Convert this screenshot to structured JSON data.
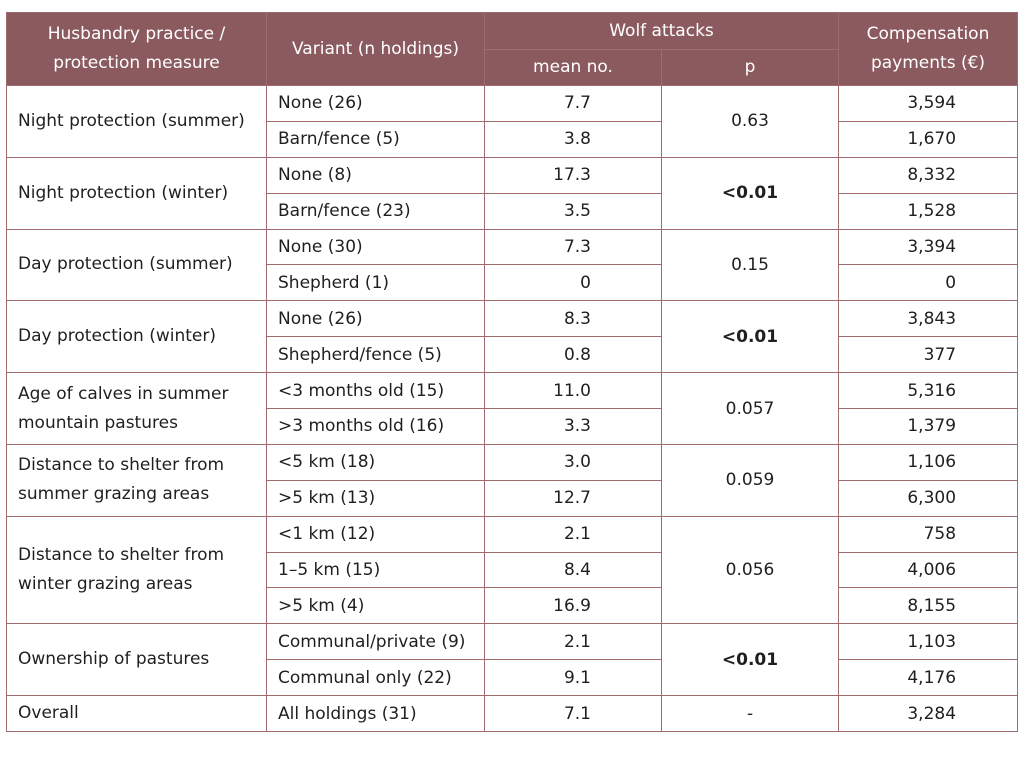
{
  "headers": {
    "practice": "Husbandry practice / protection measure",
    "variant": "Variant (n holdings)",
    "wolf_attacks": "Wolf attacks",
    "mean": "mean no.",
    "p": "p",
    "compensation": "Compensation payments (€)"
  },
  "groups": [
    {
      "practice": "Night protection (summer)",
      "p": "0.63",
      "significant": false,
      "rows": [
        {
          "variant": "None (26)",
          "mean": "7.7",
          "comp": "3,594"
        },
        {
          "variant": "Barn/fence (5)",
          "mean": "3.8",
          "comp": "1,670"
        }
      ]
    },
    {
      "practice": "Night protection (winter)",
      "p": "<0.01",
      "significant": true,
      "rows": [
        {
          "variant": "None (8)",
          "mean": "17.3",
          "comp": "8,332"
        },
        {
          "variant": "Barn/fence (23)",
          "mean": "3.5",
          "comp": "1,528"
        }
      ]
    },
    {
      "practice": "Day protection (summer)",
      "p": "0.15",
      "significant": false,
      "rows": [
        {
          "variant": "None (30)",
          "mean": "7.3",
          "comp": "3,394"
        },
        {
          "variant": "Shepherd (1)",
          "mean": "0",
          "comp": "0"
        }
      ]
    },
    {
      "practice": "Day protection (winter)",
      "p": "<0.01",
      "significant": true,
      "rows": [
        {
          "variant": "None (26)",
          "mean": "8.3",
          "comp": "3,843"
        },
        {
          "variant": "Shepherd/fence (5)",
          "mean": "0.8",
          "comp": "377"
        }
      ]
    },
    {
      "practice": "Age of calves in summer mountain pastures",
      "p": "0.057",
      "significant": false,
      "rows": [
        {
          "variant": "<3 months old (15)",
          "mean": "11.0",
          "comp": "5,316"
        },
        {
          "variant": ">3 months old (16)",
          "mean": "3.3",
          "comp": "1,379"
        }
      ]
    },
    {
      "practice": "Distance to shelter from summer grazing areas",
      "p": "0.059",
      "significant": false,
      "rows": [
        {
          "variant": "<5 km (18)",
          "mean": "3.0",
          "comp": "1,106"
        },
        {
          "variant": ">5 km (13)",
          "mean": "12.7",
          "comp": "6,300"
        }
      ]
    },
    {
      "practice": "Distance to shelter from winter grazing areas",
      "p": "0.056",
      "significant": false,
      "rows": [
        {
          "variant": "<1 km (12)",
          "mean": "2.1",
          "comp": "758"
        },
        {
          "variant": "1–5 km (15)",
          "mean": "8.4",
          "comp": "4,006"
        },
        {
          "variant": ">5 km (4)",
          "mean": "16.9",
          "comp": "8,155"
        }
      ]
    },
    {
      "practice": "Ownership of pastures",
      "p": "<0.01",
      "significant": true,
      "rows": [
        {
          "variant": "Communal/private (9)",
          "mean": "2.1",
          "comp": "1,103"
        },
        {
          "variant": "Communal only (22)",
          "mean": "9.1",
          "comp": "4,176"
        }
      ]
    },
    {
      "practice": "Overall",
      "p": "-",
      "significant": false,
      "rows": [
        {
          "variant": "All holdings (31)",
          "mean": "7.1",
          "comp": "3,284"
        }
      ]
    }
  ],
  "colors": {
    "header_bg": "#8b5a5e",
    "header_text": "#ffffff",
    "border": "#a06a6e",
    "cell_text": "#1f1f1f"
  }
}
